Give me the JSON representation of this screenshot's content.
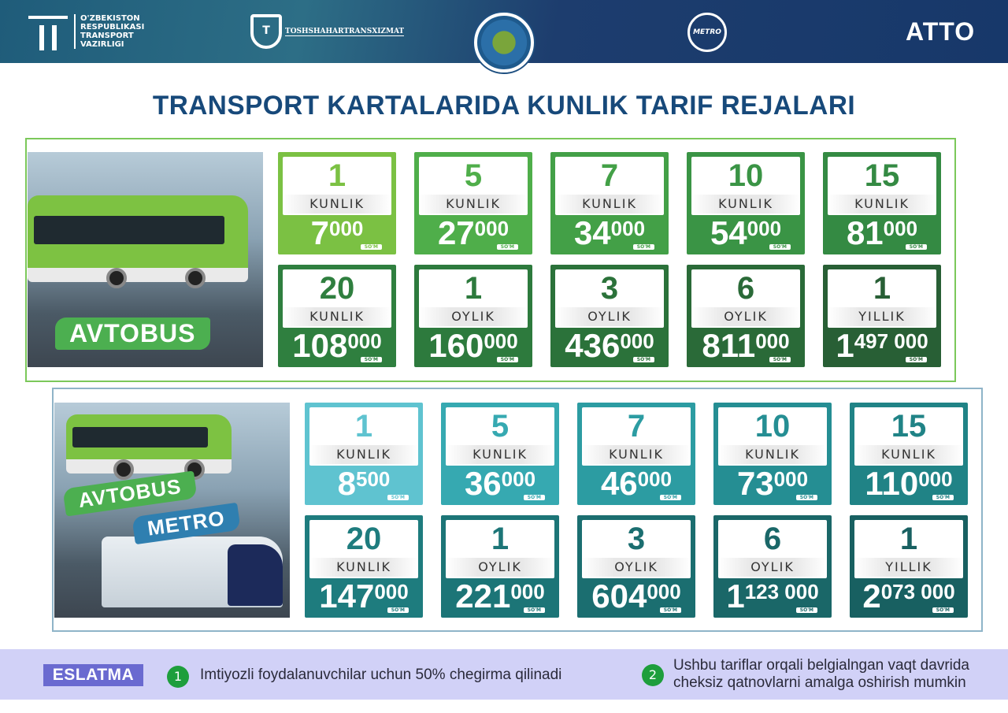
{
  "header": {
    "ministry_logo_text": "O'ZBEKISTON RESPUBLIKASI TRANSPORT VAZIRLIGI",
    "tsh_logo_text": "TOSHSHAHARTRANSXIZMAT",
    "metro_logo_text": "METRO",
    "atto_logo": "ATTO"
  },
  "title": "TRANSPORT KARTALARIDA KUNLIK TARIF REJALARI",
  "colors": {
    "title": "#17497a",
    "green_accent": "#7bc143",
    "teal_accent": "#5fc3d0",
    "note_bg": "#d1d1f7",
    "eslatma_bg": "#6a6ad0"
  },
  "bus_section": {
    "tag": "AVTOBUS",
    "currency": "SO'M",
    "plans": [
      {
        "count": "1",
        "unit": "KUNLIK",
        "price_main": "7",
        "price_sub": "000",
        "color": "#7bc143"
      },
      {
        "count": "5",
        "unit": "KUNLIK",
        "price_main": "27",
        "price_sub": "000",
        "color": "#4fae4a"
      },
      {
        "count": "7",
        "unit": "KUNLIK",
        "price_main": "34",
        "price_sub": "000",
        "color": "#43a047"
      },
      {
        "count": "10",
        "unit": "KUNLIK",
        "price_main": "54",
        "price_sub": "000",
        "color": "#3a9445"
      },
      {
        "count": "15",
        "unit": "KUNLIK",
        "price_main": "81",
        "price_sub": "000",
        "color": "#348a43"
      },
      {
        "count": "20",
        "unit": "KUNLIK",
        "price_main": "108",
        "price_sub": "000",
        "color": "#2f7f3f"
      },
      {
        "count": "1",
        "unit": "OYLIK",
        "price_main": "160",
        "price_sub": "000",
        "color": "#2d7a3d"
      },
      {
        "count": "3",
        "unit": "OYLIK",
        "price_main": "436",
        "price_sub": "000",
        "color": "#2b723a"
      },
      {
        "count": "6",
        "unit": "OYLIK",
        "price_main": "811",
        "price_sub": "000",
        "color": "#2a6a38"
      },
      {
        "count": "1",
        "unit": "YILLIK",
        "price_main": "1",
        "price_sub": "497 000",
        "color": "#285f35"
      }
    ]
  },
  "combo_section": {
    "tag1": "AVTOBUS",
    "tag2": "METRO",
    "currency": "SO'M",
    "plans": [
      {
        "count": "1",
        "unit": "KUNLIK",
        "price_main": "8",
        "price_sub": "500",
        "color": "#5fc3d0"
      },
      {
        "count": "5",
        "unit": "KUNLIK",
        "price_main": "36",
        "price_sub": "000",
        "color": "#36a9b1"
      },
      {
        "count": "7",
        "unit": "KUNLIK",
        "price_main": "46",
        "price_sub": "000",
        "color": "#2c9ca2"
      },
      {
        "count": "10",
        "unit": "KUNLIK",
        "price_main": "73",
        "price_sub": "000",
        "color": "#258e93"
      },
      {
        "count": "15",
        "unit": "KUNLIK",
        "price_main": "110",
        "price_sub": "000",
        "color": "#208386"
      },
      {
        "count": "20",
        "unit": "KUNLIK",
        "price_main": "147",
        "price_sub": "000",
        "color": "#1e7c7e"
      },
      {
        "count": "1",
        "unit": "OYLIK",
        "price_main": "221",
        "price_sub": "000",
        "color": "#1c7577"
      },
      {
        "count": "3",
        "unit": "OYLIK",
        "price_main": "604",
        "price_sub": "000",
        "color": "#1b6e70"
      },
      {
        "count": "6",
        "unit": "OYLIK",
        "price_main": "1",
        "price_sub": "123 000",
        "color": "#1a6768"
      },
      {
        "count": "1",
        "unit": "YILLIK",
        "price_main": "2",
        "price_sub": "073 000",
        "color": "#186061"
      }
    ]
  },
  "note": {
    "label": "ESLATMA",
    "items": [
      {
        "num": "1",
        "text": "Imtiyozli foydalanuvchilar uchun 50% chegirma qilinadi"
      },
      {
        "num": "2",
        "line1": "Ushbu tariflar orqali belgialngan vaqt davrida",
        "line2": "cheksiz qatnovlarni amalga oshirish mumkin"
      }
    ]
  }
}
